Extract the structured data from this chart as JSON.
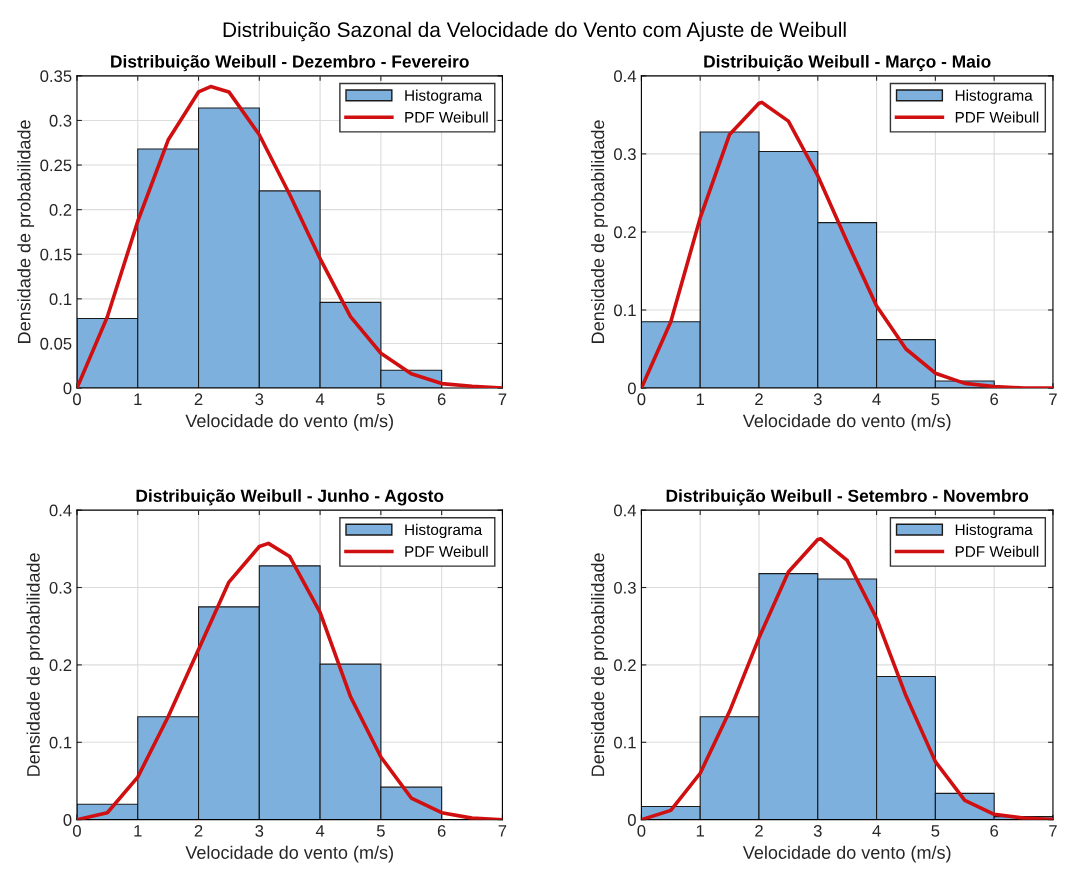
{
  "chart_data": [
    {
      "type": "other",
      "title": "Distribuição Sazonal da Velocidade do Vento com Ajuste de Weibull"
    },
    {
      "type": "histogram",
      "title": "Distribuição Weibull - Dezembro - Fevereiro",
      "xlabel": "Velocidade do vento (m/s)",
      "ylabel": "Densidade de probabilidade",
      "xlim": [
        0,
        7
      ],
      "xticks": [
        0,
        1,
        2,
        3,
        4,
        5,
        6,
        7
      ],
      "ylim": [
        0,
        0.35
      ],
      "yticks": [
        0,
        0.05,
        0.1,
        0.15,
        0.2,
        0.25,
        0.3,
        0.35
      ],
      "grid": true,
      "legend": "top right",
      "series": [
        {
          "name": "Histograma",
          "type": "histogram",
          "color": "#7eb0de",
          "bins": [
            0,
            1,
            2,
            3,
            4,
            5,
            6,
            7
          ],
          "values": [
            0.078,
            0.268,
            0.314,
            0.221,
            0.096,
            0.02,
            null
          ]
        },
        {
          "name": "PDF Weibull",
          "type": "line",
          "color": "#d01010",
          "x": [
            0,
            0.5,
            1,
            1.5,
            2,
            2.2,
            2.5,
            3,
            3.5,
            4,
            4.5,
            5,
            5.5,
            6,
            6.5,
            7
          ],
          "values": [
            0,
            0.08,
            0.187,
            0.278,
            0.332,
            0.338,
            0.332,
            0.284,
            0.217,
            0.145,
            0.08,
            0.039,
            0.016,
            0.005,
            0.002,
            0
          ]
        }
      ]
    },
    {
      "type": "histogram",
      "title": "Distribuição Weibull - Março - Maio",
      "xlabel": "Velocidade do vento (m/s)",
      "ylabel": "Densidade de probabilidade",
      "xlim": [
        0,
        7
      ],
      "xticks": [
        0,
        1,
        2,
        3,
        4,
        5,
        6,
        7
      ],
      "ylim": [
        0,
        0.4
      ],
      "yticks": [
        0,
        0.1,
        0.2,
        0.3,
        0.4
      ],
      "grid": true,
      "legend": "top right",
      "series": [
        {
          "name": "Histograma",
          "type": "histogram",
          "color": "#7eb0de",
          "bins": [
            0,
            1,
            2,
            3,
            4,
            5,
            6,
            7
          ],
          "values": [
            0.085,
            0.328,
            0.303,
            0.212,
            0.062,
            0.009,
            null
          ]
        },
        {
          "name": "PDF Weibull",
          "type": "line",
          "color": "#d01010",
          "x": [
            0,
            0.5,
            1,
            1.5,
            2,
            2.05,
            2.5,
            3,
            3.5,
            4,
            4.5,
            5,
            5.5,
            6,
            6.5,
            7
          ],
          "values": [
            0,
            0.085,
            0.218,
            0.325,
            0.365,
            0.366,
            0.342,
            0.272,
            0.187,
            0.105,
            0.05,
            0.019,
            0.006,
            0.002,
            0,
            0
          ]
        }
      ]
    },
    {
      "type": "histogram",
      "title": "Distribuição Weibull - Junho - Agosto",
      "xlabel": "Velocidade do vento (m/s)",
      "ylabel": "Densidade de probabilidade",
      "xlim": [
        0,
        7
      ],
      "xticks": [
        0,
        1,
        2,
        3,
        4,
        5,
        6,
        7
      ],
      "ylim": [
        0,
        0.4
      ],
      "yticks": [
        0,
        0.1,
        0.2,
        0.3,
        0.4
      ],
      "grid": true,
      "legend": "top right",
      "series": [
        {
          "name": "Histograma",
          "type": "histogram",
          "color": "#7eb0de",
          "bins": [
            0,
            1,
            2,
            3,
            4,
            5,
            6
          ],
          "values": [
            0.02,
            0.133,
            0.275,
            0.328,
            0.201,
            0.042
          ]
        },
        {
          "name": "PDF Weibull",
          "type": "line",
          "color": "#d01010",
          "x": [
            0,
            0.5,
            1,
            1.5,
            2,
            2.5,
            3,
            3.15,
            3.5,
            4,
            4.5,
            5,
            5.5,
            6,
            6.5,
            7
          ],
          "values": [
            0,
            0.009,
            0.055,
            0.133,
            0.22,
            0.307,
            0.353,
            0.357,
            0.34,
            0.268,
            0.159,
            0.081,
            0.028,
            0.009,
            0.002,
            0
          ]
        }
      ]
    },
    {
      "type": "histogram",
      "title": "Distribuição Weibull - Setembro - Novembro",
      "xlabel": "Velocidade do vento (m/s)",
      "ylabel": "Densidade de probabilidade",
      "xlim": [
        0,
        7
      ],
      "xticks": [
        0,
        1,
        2,
        3,
        4,
        5,
        6,
        7
      ],
      "ylim": [
        0,
        0.4
      ],
      "yticks": [
        0,
        0.1,
        0.2,
        0.3,
        0.4
      ],
      "grid": true,
      "legend": "top right",
      "series": [
        {
          "name": "Histograma",
          "type": "histogram",
          "color": "#7eb0de",
          "bins": [
            0,
            1,
            2,
            3,
            4,
            5,
            6,
            7
          ],
          "values": [
            0.017,
            0.133,
            0.318,
            0.311,
            0.185,
            0.034,
            0.004
          ]
        },
        {
          "name": "PDF Weibull",
          "type": "line",
          "color": "#d01010",
          "x": [
            0,
            0.5,
            1,
            1.5,
            2,
            2.5,
            3,
            3.05,
            3.5,
            4,
            4.5,
            5,
            5.5,
            6,
            6.5,
            7
          ],
          "values": [
            0,
            0.012,
            0.06,
            0.14,
            0.235,
            0.32,
            0.362,
            0.363,
            0.335,
            0.26,
            0.16,
            0.075,
            0.025,
            0.007,
            0.002,
            0
          ]
        }
      ]
    }
  ]
}
